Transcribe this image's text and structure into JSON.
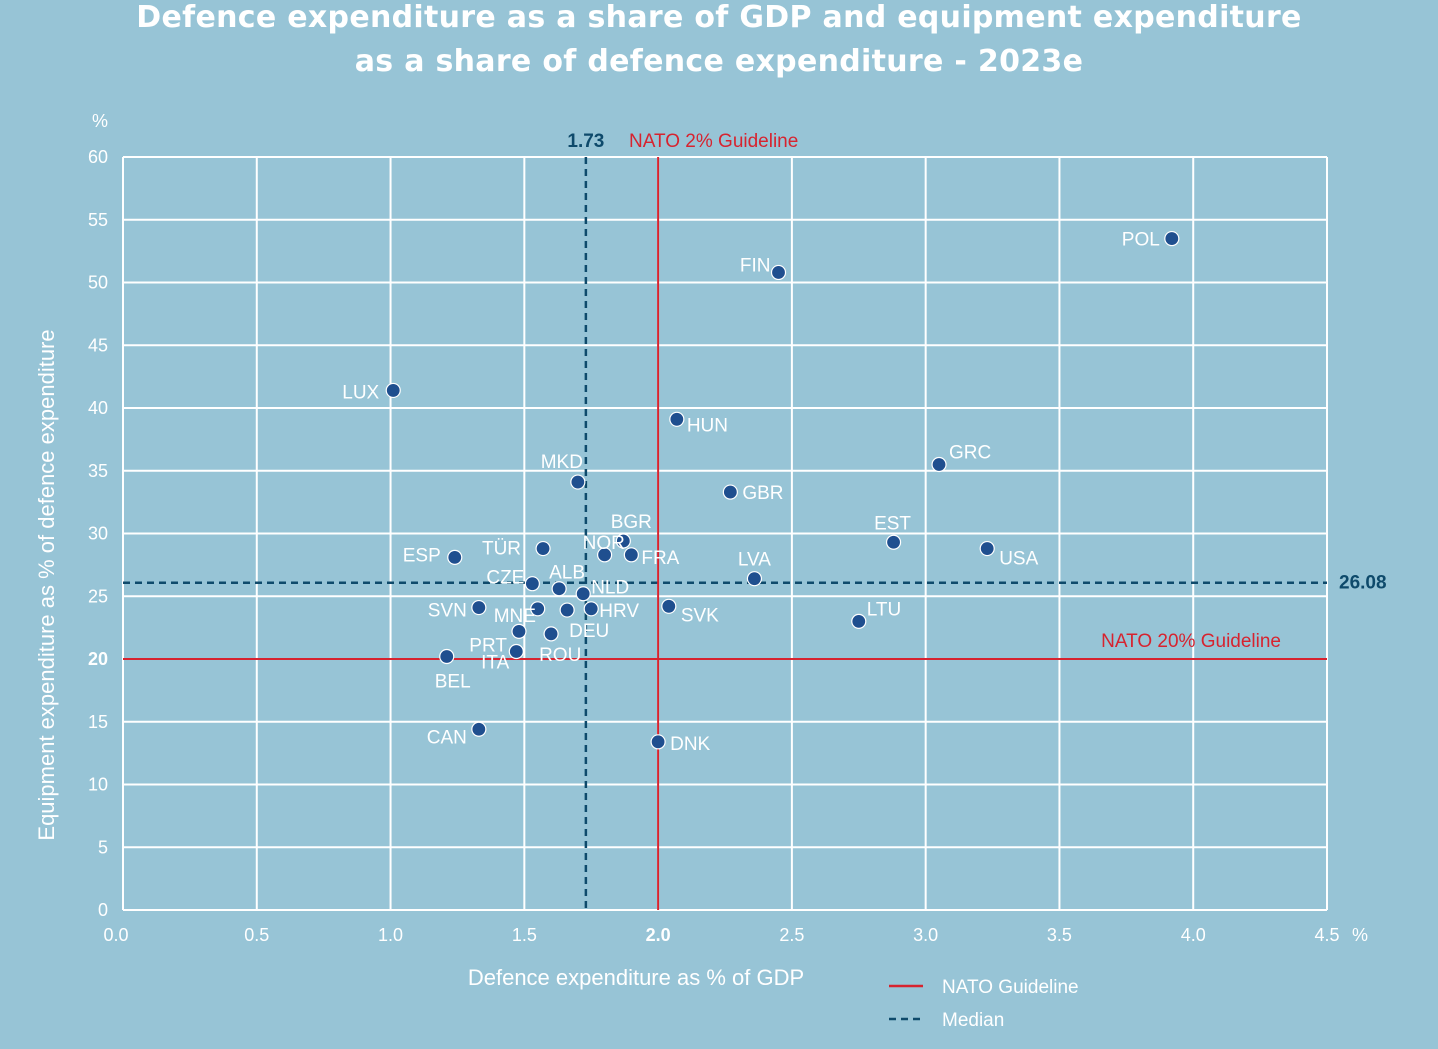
{
  "title_line1": "Defence expenditure as a share of GDP and equipment expenditure",
  "title_line2": "as a share of defence expenditure - 2023e",
  "chart_data": {
    "type": "scatter",
    "xlabel": "Defence expenditure as % of GDP",
    "ylabel": "Equipment expenditure as % of defence expenditure",
    "x_unit": "%",
    "y_unit": "%",
    "xlim": [
      0,
      4.5
    ],
    "ylim": [
      0,
      60
    ],
    "x_ticks": [
      "0.0",
      "0.5",
      "1.0",
      "1.5",
      "2.0",
      "2.5",
      "3.0",
      "3.5",
      "4.0",
      "4.5"
    ],
    "y_ticks": [
      "0",
      "5",
      "10",
      "15",
      "20",
      "25",
      "30",
      "35",
      "40",
      "45",
      "50",
      "55",
      "60"
    ],
    "grid": true,
    "reference_lines": {
      "nato_gdp": {
        "x": 2.0,
        "label": "NATO 2% Guideline",
        "color": "#d7232f"
      },
      "nato_equipment": {
        "y": 20,
        "label": "NATO 20% Guideline",
        "color": "#d7232f"
      },
      "median_x": {
        "x": 1.73,
        "label": "1.73",
        "color": "#0e4a6b"
      },
      "median_y": {
        "y": 26.08,
        "label": "26.08",
        "color": "#0e4a6b"
      }
    },
    "legend": [
      {
        "label": "NATO Guideline",
        "style": "solid",
        "color": "#d7232f"
      },
      {
        "label": "Median",
        "style": "dashed",
        "color": "#0e4a6b"
      }
    ],
    "legend_position": "bottom-right",
    "marker_color": "#1f4f8f",
    "points": [
      {
        "label": "POL",
        "x": 3.92,
        "y": 53.5
      },
      {
        "label": "FIN",
        "x": 2.45,
        "y": 50.8
      },
      {
        "label": "LUX",
        "x": 1.01,
        "y": 41.4
      },
      {
        "label": "HUN",
        "x": 2.07,
        "y": 39.1
      },
      {
        "label": "GRC",
        "x": 3.05,
        "y": 35.5
      },
      {
        "label": "MKD",
        "x": 1.7,
        "y": 34.1
      },
      {
        "label": "GBR",
        "x": 2.27,
        "y": 33.3
      },
      {
        "label": "BGR",
        "x": 1.87,
        "y": 29.4
      },
      {
        "label": "EST",
        "x": 2.88,
        "y": 29.3
      },
      {
        "label": "USA",
        "x": 3.23,
        "y": 28.8
      },
      {
        "label": "TÜR",
        "x": 1.57,
        "y": 28.8
      },
      {
        "label": "NOR",
        "x": 1.8,
        "y": 28.3
      },
      {
        "label": "FRA",
        "x": 1.9,
        "y": 28.3
      },
      {
        "label": "ESP",
        "x": 1.24,
        "y": 28.1
      },
      {
        "label": "LVA",
        "x": 2.36,
        "y": 26.4
      },
      {
        "label": "CZE",
        "x": 1.53,
        "y": 26.0
      },
      {
        "label": "ALB",
        "x": 1.63,
        "y": 25.6
      },
      {
        "label": "NLD",
        "x": 1.72,
        "y": 25.2
      },
      {
        "label": "SVK",
        "x": 2.04,
        "y": 24.2
      },
      {
        "label": "SVN",
        "x": 1.33,
        "y": 24.1
      },
      {
        "label": "MNE",
        "x": 1.55,
        "y": 24.0
      },
      {
        "label": "HRV",
        "x": 1.75,
        "y": 24.0
      },
      {
        "label": "DEU",
        "x": 1.66,
        "y": 23.9
      },
      {
        "label": "LTU",
        "x": 2.75,
        "y": 23.0
      },
      {
        "label": "PRT",
        "x": 1.48,
        "y": 22.2
      },
      {
        "label": "ROU",
        "x": 1.6,
        "y": 22.0
      },
      {
        "label": "ITA",
        "x": 1.47,
        "y": 20.6
      },
      {
        "label": "BEL",
        "x": 1.21,
        "y": 20.2
      },
      {
        "label": "CAN",
        "x": 1.33,
        "y": 14.4
      },
      {
        "label": "DNK",
        "x": 2.0,
        "y": 13.4
      }
    ]
  }
}
